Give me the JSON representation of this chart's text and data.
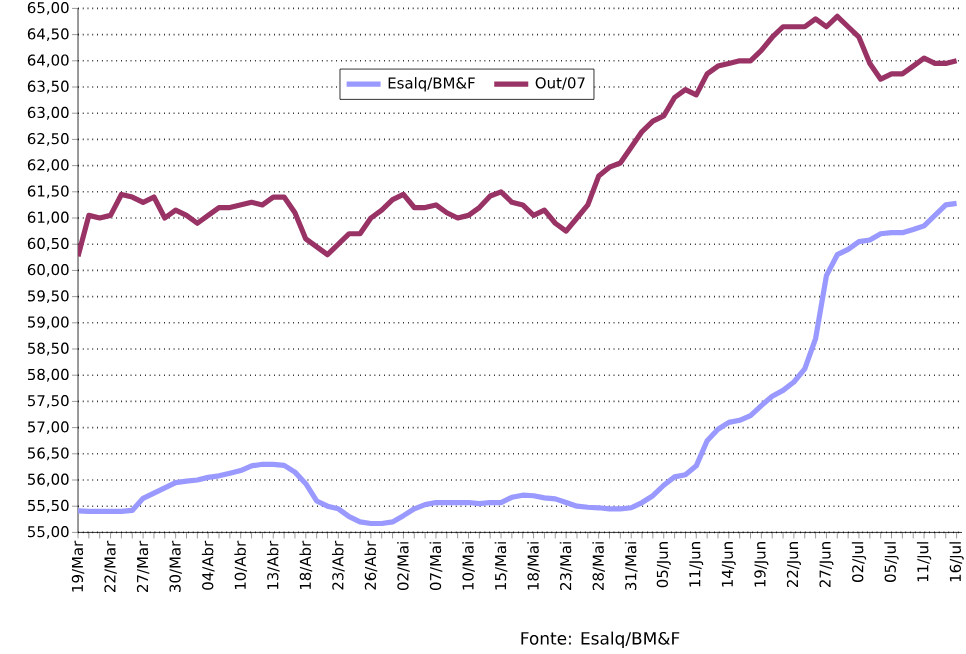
{
  "chart_data": {
    "type": "line",
    "categories": [
      "19/Mar",
      null,
      null,
      "22/Mar",
      null,
      null,
      "27/Mar",
      null,
      null,
      "30/Mar",
      null,
      null,
      "04/Abr",
      null,
      null,
      "10/Abr",
      null,
      null,
      "13/Abr",
      null,
      null,
      "18/Abr",
      null,
      null,
      "23/Abr",
      null,
      null,
      "26/Abr",
      null,
      null,
      "02/Mai",
      null,
      null,
      "07/Mai",
      null,
      null,
      "10/Mai",
      null,
      null,
      "15/Mai",
      null,
      null,
      "18/Mai",
      null,
      null,
      "23/Mai",
      null,
      null,
      "28/Mai",
      null,
      null,
      "31/Mai",
      null,
      null,
      "05/Jun",
      null,
      null,
      "11/Jun",
      null,
      null,
      "14/Jun",
      null,
      null,
      "19/Jun",
      null,
      null,
      "22/Jun",
      null,
      null,
      "27/Jun",
      null,
      null,
      "02/Jul",
      null,
      null,
      "05/Jul",
      null,
      null,
      "11/Jul",
      null,
      null,
      "16/Jul"
    ],
    "series": [
      {
        "name": "Esalq/BM&F",
        "color": "#9999ff",
        "values": [
          55.41,
          55.4,
          55.4,
          55.4,
          55.4,
          55.42,
          55.65,
          55.75,
          55.85,
          55.95,
          55.98,
          56.0,
          56.05,
          56.08,
          56.13,
          56.18,
          56.27,
          56.3,
          56.3,
          56.28,
          56.15,
          55.93,
          55.6,
          55.5,
          55.45,
          55.3,
          55.2,
          55.17,
          55.17,
          55.2,
          55.32,
          55.45,
          55.53,
          55.57,
          55.57,
          55.57,
          55.57,
          55.55,
          55.57,
          55.57,
          55.67,
          55.71,
          55.7,
          55.66,
          55.64,
          55.57,
          55.5,
          55.48,
          55.47,
          55.45,
          55.45,
          55.47,
          55.57,
          55.7,
          55.9,
          56.06,
          56.1,
          56.27,
          56.75,
          56.97,
          57.1,
          57.14,
          57.23,
          57.42,
          57.6,
          57.71,
          57.87,
          58.12,
          58.7,
          59.9,
          60.3,
          60.4,
          60.55,
          60.58,
          60.7,
          60.72,
          60.72,
          60.78,
          60.85,
          61.05,
          61.25,
          61.28
        ]
      },
      {
        "name": "Out/07",
        "color": "#993366",
        "values": [
          60.27,
          61.05,
          61.0,
          61.05,
          61.45,
          61.4,
          61.3,
          61.4,
          61.0,
          61.15,
          61.05,
          60.9,
          61.05,
          61.2,
          61.2,
          61.25,
          61.3,
          61.25,
          61.4,
          61.4,
          61.1,
          60.6,
          60.45,
          60.3,
          60.5,
          60.7,
          60.7,
          61.0,
          61.15,
          61.35,
          61.45,
          61.2,
          61.2,
          61.25,
          61.1,
          61.0,
          61.05,
          61.2,
          61.42,
          61.5,
          61.3,
          61.25,
          61.05,
          61.15,
          60.9,
          60.75,
          61.0,
          61.25,
          61.8,
          61.97,
          62.05,
          62.35,
          62.65,
          62.85,
          62.95,
          63.3,
          63.45,
          63.35,
          63.75,
          63.9,
          63.95,
          64.0,
          64.0,
          64.2,
          64.45,
          64.65,
          64.65,
          64.65,
          64.8,
          64.65,
          64.85,
          64.65,
          64.45,
          63.95,
          63.65,
          63.75,
          63.75,
          63.9,
          64.05,
          63.95,
          63.95,
          64.0
        ]
      }
    ],
    "ylim": [
      55,
      65
    ],
    "yticks": [
      {
        "value": 55,
        "label": "55,00"
      },
      {
        "value": 55.5,
        "label": "55,50"
      },
      {
        "value": 56,
        "label": "56,00"
      },
      {
        "value": 56.5,
        "label": "56,50"
      },
      {
        "value": 57,
        "label": "57,00"
      },
      {
        "value": 57.5,
        "label": "57,50"
      },
      {
        "value": 58,
        "label": "58,00"
      },
      {
        "value": 58.5,
        "label": "58,50"
      },
      {
        "value": 59,
        "label": "59,00"
      },
      {
        "value": 59.5,
        "label": "59,50"
      },
      {
        "value": 60,
        "label": "60,00"
      },
      {
        "value": 60.5,
        "label": "60,50"
      },
      {
        "value": 61,
        "label": "61,00"
      },
      {
        "value": 61.5,
        "label": "61,50"
      },
      {
        "value": 62,
        "label": "62,00"
      },
      {
        "value": 62.5,
        "label": "62,50"
      },
      {
        "value": 63,
        "label": "63,00"
      },
      {
        "value": 63.5,
        "label": "63,50"
      },
      {
        "value": 64,
        "label": "64,00"
      },
      {
        "value": 64.5,
        "label": "64,50"
      },
      {
        "value": 65,
        "label": "65,00"
      }
    ],
    "grid": "y",
    "legend": "top",
    "annotations": [
      "Fonte: Esalq/BM&F"
    ]
  }
}
